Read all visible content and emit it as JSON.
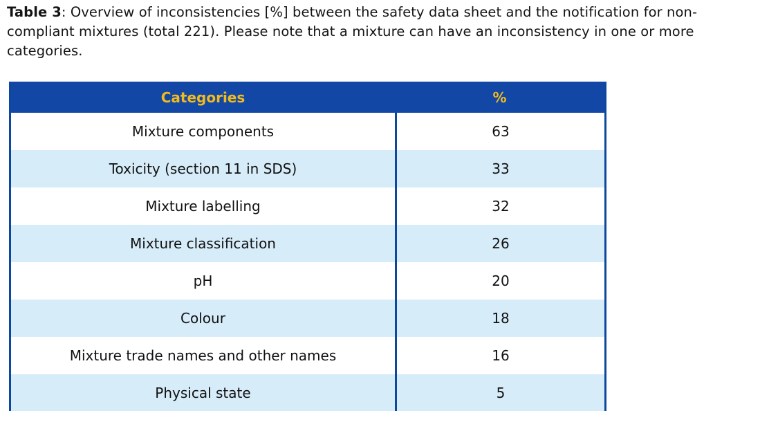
{
  "caption": {
    "label": "Table 3",
    "text": ": Overview of inconsistencies [%] between the safety data sheet and the notification for non-compliant mixtures (total 221). Please note that a mixture can have an inconsistency in one or more categories."
  },
  "table": {
    "colors": {
      "header_bg": "#1347A5",
      "header_text": "#F2BB1D",
      "border": "#0C48A0",
      "row_alt_bg": "#D7ECF9",
      "row_bg": "#FFFFFF",
      "cell_text": "#111111"
    },
    "columns": [
      {
        "label": "Categories"
      },
      {
        "label": "%"
      }
    ],
    "rows": [
      {
        "category": "Mixture components",
        "percent": "63"
      },
      {
        "category": "Toxicity (section 11 in SDS)",
        "percent": "33"
      },
      {
        "category": "Mixture labelling",
        "percent": "32"
      },
      {
        "category": "Mixture classification",
        "percent": "26"
      },
      {
        "category": "pH",
        "percent": "20"
      },
      {
        "category": "Colour",
        "percent": "18"
      },
      {
        "category": "Mixture trade names and other names",
        "percent": "16"
      },
      {
        "category": "Physical state",
        "percent": "5"
      }
    ]
  }
}
